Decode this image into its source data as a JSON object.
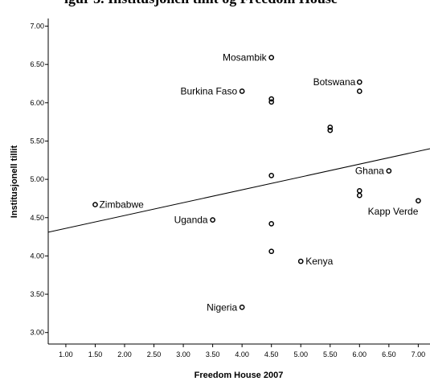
{
  "chart_data": {
    "type": "scatter",
    "title": "igur 3. Institusjonell tillit og Freedom House",
    "xlabel": "Freedom House 2007",
    "ylabel": "Institusjonell tillit",
    "xlim": [
      0.7,
      7.2
    ],
    "ylim": [
      2.85,
      7.1
    ],
    "grid": false,
    "x_ticks": [
      "1.00",
      "1.50",
      "2.00",
      "2.50",
      "3.00",
      "3.50",
      "4.00",
      "4.50",
      "5.00",
      "5.50",
      "6.00",
      "6.50",
      "7.00"
    ],
    "y_ticks": [
      "3.00",
      "3.50",
      "4.00",
      "4.50",
      "5.00",
      "5.50",
      "6.00",
      "6.50",
      "7.00"
    ],
    "points": [
      {
        "x": 4.5,
        "y": 6.59,
        "label": "Mosambik"
      },
      {
        "x": 4.0,
        "y": 6.15,
        "label": "Burkina Faso"
      },
      {
        "x": 6.0,
        "y": 6.27,
        "label": "Botswana"
      },
      {
        "x": 6.0,
        "y": 6.15,
        "label": ""
      },
      {
        "x": 4.5,
        "y": 6.05,
        "label": ""
      },
      {
        "x": 4.5,
        "y": 6.01,
        "label": ""
      },
      {
        "x": 5.5,
        "y": 5.68,
        "label": ""
      },
      {
        "x": 5.5,
        "y": 5.64,
        "label": ""
      },
      {
        "x": 6.5,
        "y": 5.11,
        "label": "Ghana"
      },
      {
        "x": 4.5,
        "y": 5.05,
        "label": ""
      },
      {
        "x": 6.0,
        "y": 4.85,
        "label": ""
      },
      {
        "x": 6.0,
        "y": 4.79,
        "label": ""
      },
      {
        "x": 7.0,
        "y": 4.72,
        "label": "Kapp Verde"
      },
      {
        "x": 1.5,
        "y": 4.67,
        "label": "Zimbabwe"
      },
      {
        "x": 3.5,
        "y": 4.47,
        "label": "Uganda"
      },
      {
        "x": 4.5,
        "y": 4.42,
        "label": ""
      },
      {
        "x": 4.5,
        "y": 4.06,
        "label": ""
      },
      {
        "x": 5.0,
        "y": 3.93,
        "label": "Kenya"
      },
      {
        "x": 4.0,
        "y": 3.33,
        "label": "Nigeria"
      }
    ],
    "fit_line": {
      "x": [
        0.7,
        7.2
      ],
      "y": [
        4.31,
        5.4
      ]
    },
    "colors": {
      "marker": "#000000",
      "line": "#000000",
      "background": "#ffffff"
    }
  }
}
